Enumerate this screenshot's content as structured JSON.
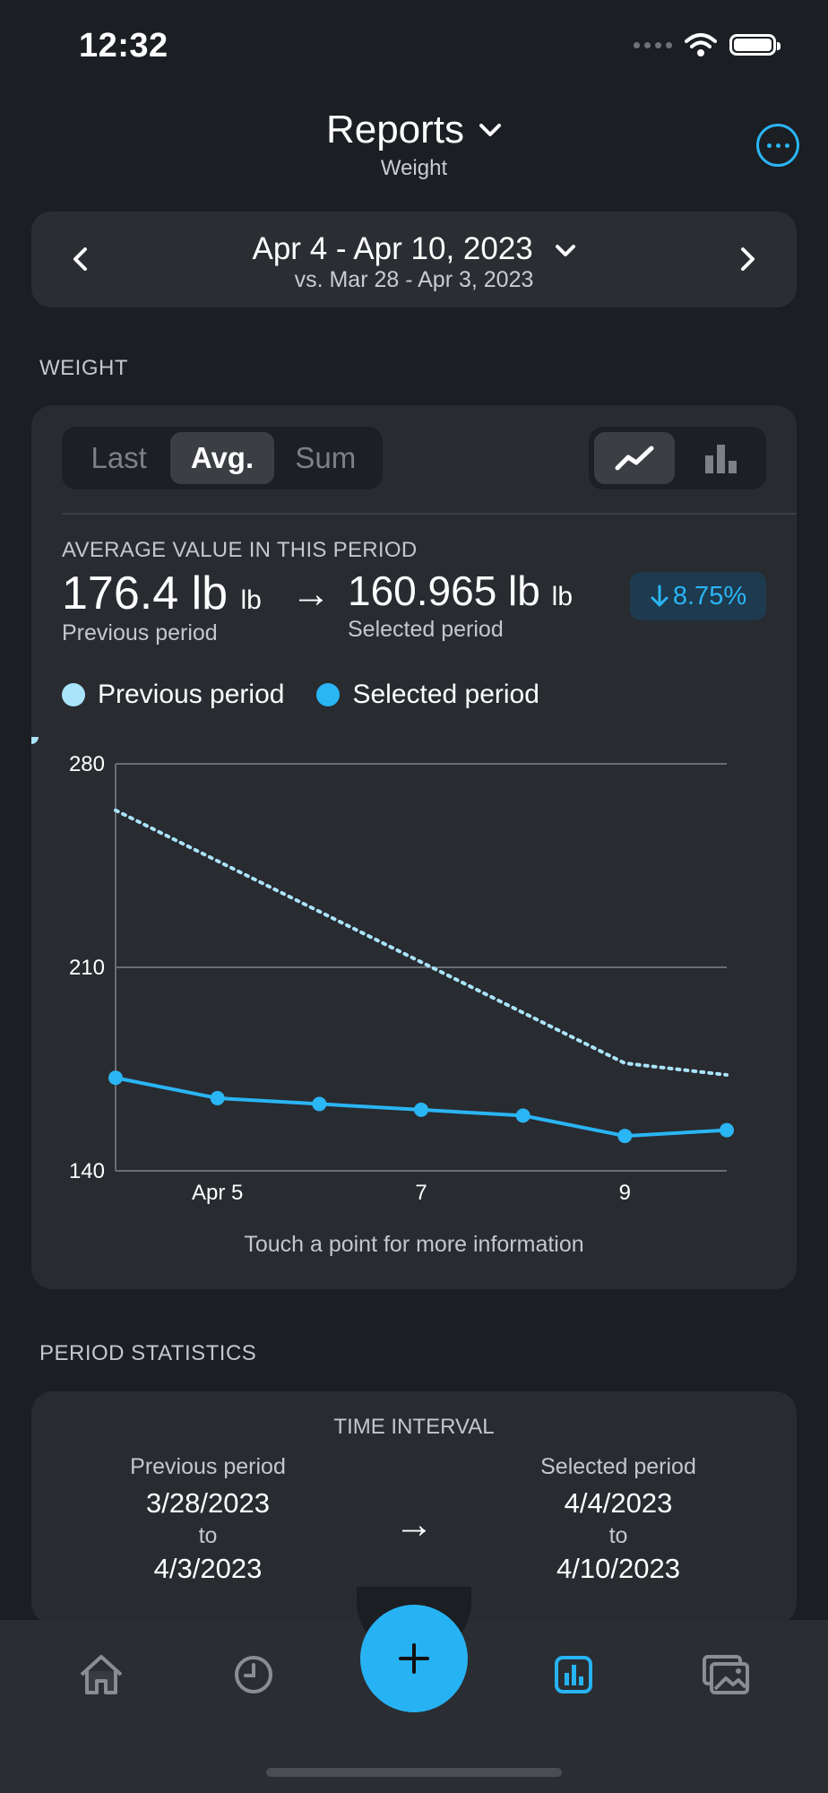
{
  "status_bar": {
    "time": "12:32"
  },
  "header": {
    "title": "Reports",
    "subtitle": "Weight"
  },
  "date_range": {
    "main": "Apr 4 - Apr 10, 2023",
    "compare": "vs. Mar 28 - Apr 3, 2023"
  },
  "weight_section": {
    "label": "WEIGHT",
    "segments": [
      "Last",
      "Avg.",
      "Sum"
    ],
    "active_segment": "Avg.",
    "summary": {
      "label": "AVERAGE VALUE IN THIS PERIOD",
      "previous_value": "176.4 lb",
      "previous_unit": "lb",
      "previous_caption": "Previous period",
      "arrow": "→",
      "selected_value": "160.965 lb",
      "selected_unit": "lb",
      "selected_caption": "Selected period",
      "change": "8.75%",
      "change_direction": "down"
    },
    "legend": [
      {
        "name": "Previous period",
        "color": "#a9e4fb"
      },
      {
        "name": "Selected period",
        "color": "#2ab5f5"
      }
    ],
    "hint": "Touch a point for more information"
  },
  "chart_data": {
    "type": "line",
    "y_ticks": [
      "280",
      "210",
      "140"
    ],
    "ylim": [
      140,
      280
    ],
    "x_ticks": [
      {
        "x": 1,
        "label": "Apr 5"
      },
      {
        "x": 3,
        "label": "7"
      },
      {
        "x": 5,
        "label": "9"
      }
    ],
    "xlim": [
      0,
      6
    ],
    "grid": true,
    "series": [
      {
        "name": "Previous period",
        "style": "dotted",
        "color": "#a9e4fb",
        "x": [
          0,
          5,
          6
        ],
        "values": [
          264,
          177,
          173
        ],
        "markers": [
          5
        ]
      },
      {
        "name": "Selected period",
        "style": "solid",
        "color": "#2ab5f5",
        "x": [
          0,
          1,
          2,
          3,
          4,
          5,
          6
        ],
        "values": [
          172,
          165,
          163,
          161,
          159,
          152,
          154
        ],
        "markers": [
          0,
          1,
          2,
          3,
          4,
          5,
          6
        ]
      }
    ]
  },
  "period_stats": {
    "label": "PERIOD STATISTICS",
    "title": "TIME INTERVAL",
    "previous": {
      "caption": "Previous period",
      "from": "3/28/2023",
      "to_label": "to",
      "to": "4/3/2023"
    },
    "arrow": "→",
    "selected": {
      "caption": "Selected period",
      "from": "4/4/2023",
      "to_label": "to",
      "to": "4/10/2023"
    }
  },
  "tab_bar": {
    "tabs": [
      "home-icon",
      "history-icon",
      "add-icon",
      "reports-icon",
      "gallery-icon"
    ],
    "active": "reports-icon",
    "accent": "#27b3f3"
  }
}
